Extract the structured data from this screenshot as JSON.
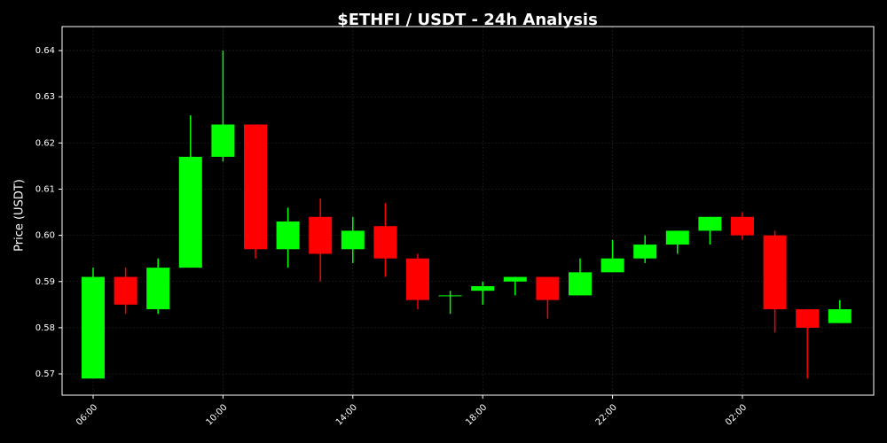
{
  "chart_data": {
    "type": "candlestick",
    "title": "$ETHFI / USDT - 24h Analysis",
    "y_label": "Price (USDT)",
    "categories": [
      "06:00",
      null,
      null,
      null,
      "10:00",
      null,
      null,
      null,
      "14:00",
      null,
      null,
      null,
      "18:00",
      null,
      null,
      null,
      "22:00",
      null,
      null,
      null,
      "02:00",
      null,
      null,
      null
    ],
    "open": [
      0.569,
      0.591,
      0.584,
      0.593,
      0.617,
      0.624,
      0.597,
      0.604,
      0.597,
      0.602,
      0.595,
      0.587,
      0.588,
      0.59,
      0.591,
      0.587,
      0.592,
      0.595,
      0.598,
      0.601,
      0.604,
      0.6,
      0.584,
      0.581
    ],
    "high": [
      0.593,
      0.593,
      0.595,
      0.626,
      0.64,
      0.624,
      0.606,
      0.608,
      0.604,
      0.607,
      0.596,
      0.588,
      0.59,
      0.591,
      0.591,
      0.595,
      0.599,
      0.6,
      0.601,
      0.604,
      0.605,
      0.601,
      0.584,
      0.586
    ],
    "low": [
      0.569,
      0.583,
      0.583,
      0.593,
      0.616,
      0.595,
      0.593,
      0.59,
      0.594,
      0.591,
      0.584,
      0.583,
      0.585,
      0.587,
      0.582,
      0.587,
      0.592,
      0.594,
      0.596,
      0.598,
      0.599,
      0.579,
      0.569,
      0.581
    ],
    "close": [
      0.591,
      0.585,
      0.593,
      0.617,
      0.624,
      0.597,
      0.603,
      0.596,
      0.601,
      0.595,
      0.586,
      0.587,
      0.589,
      0.591,
      0.586,
      0.592,
      0.595,
      0.598,
      0.601,
      0.604,
      0.6,
      0.584,
      0.58,
      0.584
    ],
    "up_color": "#00ff00",
    "down_color": "#ff0000",
    "ylim": [
      0.5654,
      0.6452
    ],
    "yticks": [
      0.57,
      0.58,
      0.59,
      {
        "value": 0.6,
        "label": "0.60"
      },
      0.61,
      0.62,
      0.63,
      0.64
    ],
    "grid": true
  }
}
